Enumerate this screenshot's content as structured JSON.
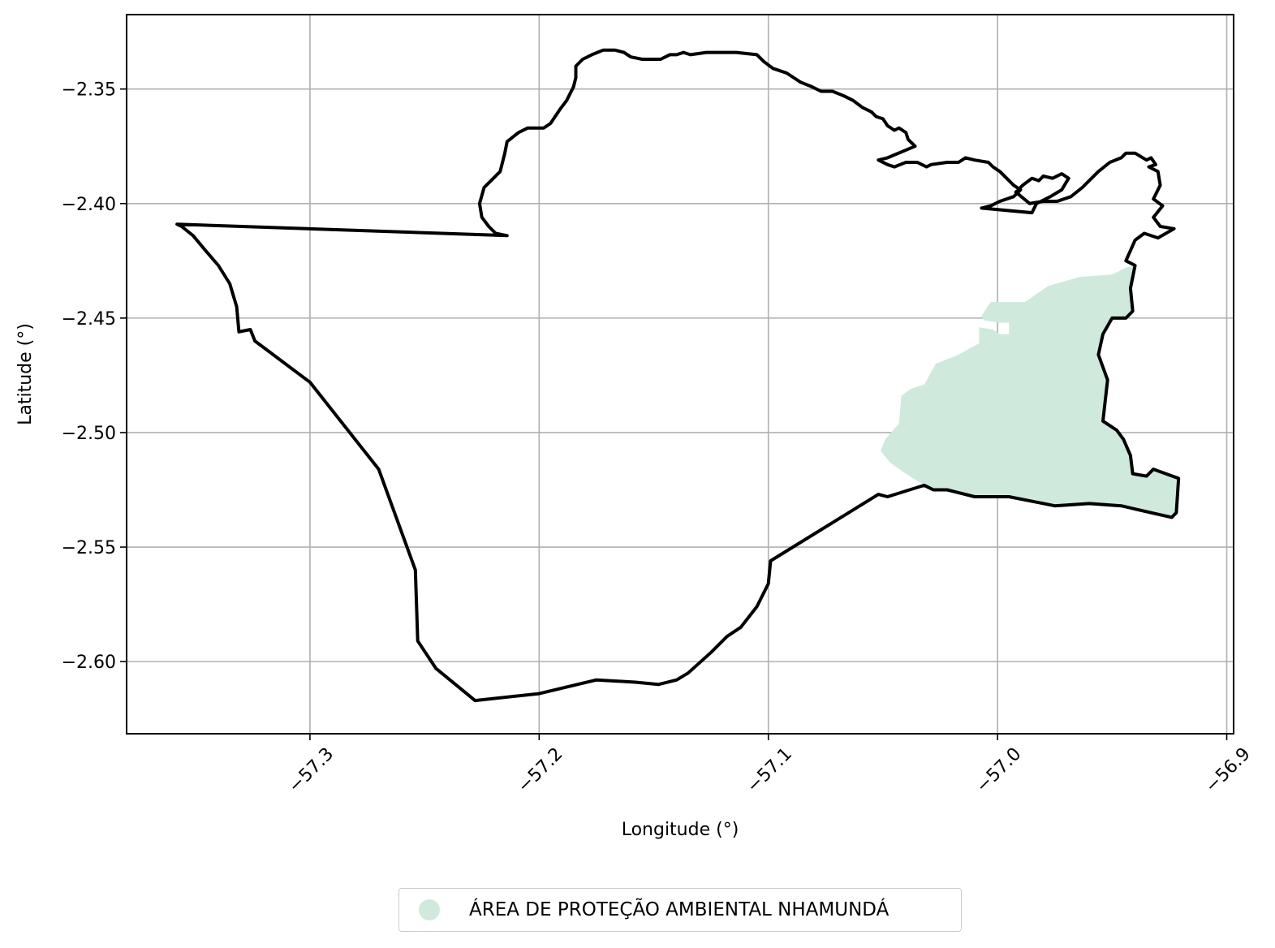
{
  "chart_data": {
    "type": "map",
    "xlabel": "Longitude (°)",
    "ylabel": "Latitude (°)",
    "xlim": [
      -57.38,
      -56.897
    ],
    "ylim": [
      -2.6315,
      -2.3175
    ],
    "x_ticks": [
      -57.3,
      -57.2,
      -57.1,
      -57.0,
      -56.9
    ],
    "x_tick_labels": [
      "−57.3",
      "−57.2",
      "−57.1",
      "−57.0",
      "−56.9"
    ],
    "y_ticks": [
      -2.35,
      -2.4,
      -2.45,
      -2.5,
      -2.55,
      -2.6
    ],
    "y_tick_labels": [
      "−2.35",
      "−2.40",
      "−2.45",
      "−2.50",
      "−2.55",
      "−2.60"
    ],
    "grid": true,
    "legend_position": "bottom-center",
    "layers": [
      {
        "name": "ÁREA DE PROTEÇÃO AMBIENTAL NHAMUNDÁ",
        "kind": "fill",
        "color": "#cfeadc",
        "polygon": [
          [
            -57.007,
            -2.449
          ],
          [
            -57.003,
            -2.443
          ],
          [
            -56.988,
            -2.443
          ],
          [
            -56.978,
            -2.436
          ],
          [
            -56.964,
            -2.432
          ],
          [
            -56.95,
            -2.431
          ],
          [
            -56.944,
            -2.428
          ],
          [
            -56.94,
            -2.427
          ],
          [
            -56.942,
            -2.437
          ],
          [
            -56.941,
            -2.447
          ],
          [
            -56.944,
            -2.45
          ],
          [
            -56.95,
            -2.45
          ],
          [
            -56.954,
            -2.457
          ],
          [
            -56.956,
            -2.466
          ],
          [
            -56.952,
            -2.477
          ],
          [
            -56.954,
            -2.495
          ],
          [
            -56.948,
            -2.499
          ],
          [
            -56.945,
            -2.503
          ],
          [
            -56.942,
            -2.51
          ],
          [
            -56.941,
            -2.518
          ],
          [
            -56.935,
            -2.519
          ],
          [
            -56.932,
            -2.516
          ],
          [
            -56.921,
            -2.52
          ],
          [
            -56.922,
            -2.535
          ],
          [
            -56.924,
            -2.537
          ],
          [
            -56.933,
            -2.535
          ],
          [
            -56.946,
            -2.532
          ],
          [
            -56.96,
            -2.531
          ],
          [
            -56.975,
            -2.532
          ],
          [
            -56.985,
            -2.53
          ],
          [
            -56.995,
            -2.528
          ],
          [
            -57.01,
            -2.528
          ],
          [
            -57.018,
            -2.526
          ],
          [
            -57.022,
            -2.525
          ],
          [
            -57.028,
            -2.525
          ],
          [
            -57.032,
            -2.523
          ],
          [
            -57.04,
            -2.518
          ],
          [
            -57.047,
            -2.513
          ],
          [
            -57.051,
            -2.508
          ],
          [
            -57.049,
            -2.503
          ],
          [
            -57.043,
            -2.496
          ],
          [
            -57.042,
            -2.484
          ],
          [
            -57.038,
            -2.481
          ],
          [
            -57.032,
            -2.479
          ],
          [
            -57.027,
            -2.47
          ],
          [
            -57.017,
            -2.466
          ],
          [
            -57.008,
            -2.461
          ],
          [
            -57.008,
            -2.454
          ],
          [
            -57.002,
            -2.455
          ],
          [
            -56.999,
            -2.457
          ],
          [
            -56.995,
            -2.457
          ],
          [
            -56.995,
            -2.452
          ],
          [
            -56.999,
            -2.452
          ],
          [
            -57.006,
            -2.451
          ]
        ]
      },
      {
        "name": "",
        "kind": "outline",
        "color": "#000000",
        "polygon": [
          [
            -57.358,
            -2.409
          ],
          [
            -57.214,
            -2.414
          ],
          [
            -57.219,
            -2.413
          ],
          [
            -57.222,
            -2.41
          ],
          [
            -57.225,
            -2.406
          ],
          [
            -57.226,
            -2.4
          ],
          [
            -57.224,
            -2.393
          ],
          [
            -57.221,
            -2.39
          ],
          [
            -57.217,
            -2.386
          ],
          [
            -57.215,
            -2.378
          ],
          [
            -57.214,
            -2.373
          ],
          [
            -57.209,
            -2.369
          ],
          [
            -57.205,
            -2.367
          ],
          [
            -57.198,
            -2.367
          ],
          [
            -57.195,
            -2.365
          ],
          [
            -57.191,
            -2.359
          ],
          [
            -57.188,
            -2.355
          ],
          [
            -57.185,
            -2.349
          ],
          [
            -57.184,
            -2.345
          ],
          [
            -57.184,
            -2.34
          ],
          [
            -57.181,
            -2.337
          ],
          [
            -57.177,
            -2.335
          ],
          [
            -57.172,
            -2.333
          ],
          [
            -57.167,
            -2.333
          ],
          [
            -57.163,
            -2.334
          ],
          [
            -57.16,
            -2.336
          ],
          [
            -57.155,
            -2.337
          ],
          [
            -57.147,
            -2.337
          ],
          [
            -57.143,
            -2.335
          ],
          [
            -57.14,
            -2.335
          ],
          [
            -57.137,
            -2.334
          ],
          [
            -57.134,
            -2.335
          ],
          [
            -57.127,
            -2.334
          ],
          [
            -57.121,
            -2.334
          ],
          [
            -57.114,
            -2.334
          ],
          [
            -57.105,
            -2.335
          ],
          [
            -57.102,
            -2.338
          ],
          [
            -57.098,
            -2.341
          ],
          [
            -57.092,
            -2.343
          ],
          [
            -57.086,
            -2.347
          ],
          [
            -57.081,
            -2.349
          ],
          [
            -57.077,
            -2.351
          ],
          [
            -57.072,
            -2.351
          ],
          [
            -57.067,
            -2.353
          ],
          [
            -57.063,
            -2.355
          ],
          [
            -57.059,
            -2.358
          ],
          [
            -57.055,
            -2.36
          ],
          [
            -57.053,
            -2.362
          ],
          [
            -57.05,
            -2.363
          ],
          [
            -57.048,
            -2.366
          ],
          [
            -57.045,
            -2.368
          ],
          [
            -57.043,
            -2.367
          ],
          [
            -57.04,
            -2.369
          ],
          [
            -57.039,
            -2.372
          ],
          [
            -57.036,
            -2.375
          ],
          [
            -57.048,
            -2.38
          ],
          [
            -57.052,
            -2.381
          ],
          [
            -57.048,
            -2.383
          ],
          [
            -57.045,
            -2.384
          ],
          [
            -57.04,
            -2.382
          ],
          [
            -57.035,
            -2.382
          ],
          [
            -57.031,
            -2.384
          ],
          [
            -57.029,
            -2.383
          ],
          [
            -57.022,
            -2.382
          ],
          [
            -57.017,
            -2.382
          ],
          [
            -57.014,
            -2.38
          ],
          [
            -57.01,
            -2.381
          ],
          [
            -57.004,
            -2.382
          ],
          [
            -57.002,
            -2.384
          ],
          [
            -56.999,
            -2.386
          ],
          [
            -56.996,
            -2.389
          ],
          [
            -56.993,
            -2.392
          ],
          [
            -56.99,
            -2.394
          ],
          [
            -56.993,
            -2.397
          ],
          [
            -56.999,
            -2.399
          ],
          [
            -57.003,
            -2.401
          ],
          [
            -57.007,
            -2.402
          ],
          [
            -56.985,
            -2.404
          ],
          [
            -56.983,
            -2.4
          ],
          [
            -56.979,
            -2.398
          ],
          [
            -56.977,
            -2.397
          ],
          [
            -56.972,
            -2.394
          ],
          [
            -56.969,
            -2.389
          ],
          [
            -56.972,
            -2.387
          ],
          [
            -56.976,
            -2.389
          ],
          [
            -56.98,
            -2.388
          ],
          [
            -56.982,
            -2.39
          ],
          [
            -56.985,
            -2.389
          ],
          [
            -56.989,
            -2.392
          ],
          [
            -56.992,
            -2.395
          ],
          [
            -56.986,
            -2.4
          ],
          [
            -56.98,
            -2.399
          ],
          [
            -56.974,
            -2.399
          ],
          [
            -56.968,
            -2.397
          ],
          [
            -56.963,
            -2.393
          ],
          [
            -56.96,
            -2.39
          ],
          [
            -56.956,
            -2.386
          ],
          [
            -56.951,
            -2.382
          ],
          [
            -56.946,
            -2.38
          ],
          [
            -56.944,
            -2.378
          ],
          [
            -56.94,
            -2.378
          ],
          [
            -56.935,
            -2.381
          ],
          [
            -56.933,
            -2.38
          ],
          [
            -56.931,
            -2.383
          ],
          [
            -56.934,
            -2.384
          ],
          [
            -56.93,
            -2.386
          ],
          [
            -56.929,
            -2.392
          ],
          [
            -56.932,
            -2.398
          ],
          [
            -56.928,
            -2.401
          ],
          [
            -56.932,
            -2.406
          ],
          [
            -56.929,
            -2.41
          ],
          [
            -56.923,
            -2.411
          ],
          [
            -56.93,
            -2.415
          ],
          [
            -56.936,
            -2.413
          ],
          [
            -56.94,
            -2.416
          ],
          [
            -56.944,
            -2.425
          ],
          [
            -56.94,
            -2.427
          ],
          [
            -56.942,
            -2.437
          ],
          [
            -56.941,
            -2.447
          ],
          [
            -56.944,
            -2.45
          ],
          [
            -56.95,
            -2.45
          ],
          [
            -56.954,
            -2.457
          ],
          [
            -56.956,
            -2.466
          ],
          [
            -56.952,
            -2.477
          ],
          [
            -56.954,
            -2.495
          ],
          [
            -56.948,
            -2.499
          ],
          [
            -56.945,
            -2.503
          ],
          [
            -56.942,
            -2.51
          ],
          [
            -56.941,
            -2.518
          ],
          [
            -56.935,
            -2.519
          ],
          [
            -56.932,
            -2.516
          ],
          [
            -56.921,
            -2.52
          ],
          [
            -56.922,
            -2.535
          ],
          [
            -56.924,
            -2.537
          ],
          [
            -56.933,
            -2.535
          ],
          [
            -56.946,
            -2.532
          ],
          [
            -56.96,
            -2.531
          ],
          [
            -56.975,
            -2.532
          ],
          [
            -56.985,
            -2.53
          ],
          [
            -56.995,
            -2.528
          ],
          [
            -57.01,
            -2.528
          ],
          [
            -57.018,
            -2.526
          ],
          [
            -57.022,
            -2.525
          ],
          [
            -57.028,
            -2.525
          ],
          [
            -57.032,
            -2.523
          ],
          [
            -57.048,
            -2.528
          ],
          [
            -57.052,
            -2.527
          ],
          [
            -57.099,
            -2.556
          ],
          [
            -57.1,
            -2.566
          ],
          [
            -57.105,
            -2.576
          ],
          [
            -57.112,
            -2.585
          ],
          [
            -57.118,
            -2.589
          ],
          [
            -57.125,
            -2.596
          ],
          [
            -57.135,
            -2.605
          ],
          [
            -57.14,
            -2.608
          ],
          [
            -57.148,
            -2.61
          ],
          [
            -57.158,
            -2.609
          ],
          [
            -57.175,
            -2.608
          ],
          [
            -57.2,
            -2.614
          ],
          [
            -57.228,
            -2.617
          ],
          [
            -57.245,
            -2.603
          ],
          [
            -57.253,
            -2.591
          ],
          [
            -57.254,
            -2.56
          ],
          [
            -57.27,
            -2.516
          ],
          [
            -57.3,
            -2.478
          ],
          [
            -57.324,
            -2.46
          ],
          [
            -57.326,
            -2.455
          ],
          [
            -57.331,
            -2.456
          ],
          [
            -57.332,
            -2.445
          ],
          [
            -57.335,
            -2.435
          ],
          [
            -57.34,
            -2.427
          ],
          [
            -57.346,
            -2.42
          ],
          [
            -57.351,
            -2.414
          ],
          [
            -57.356,
            -2.41
          ]
        ]
      }
    ]
  }
}
